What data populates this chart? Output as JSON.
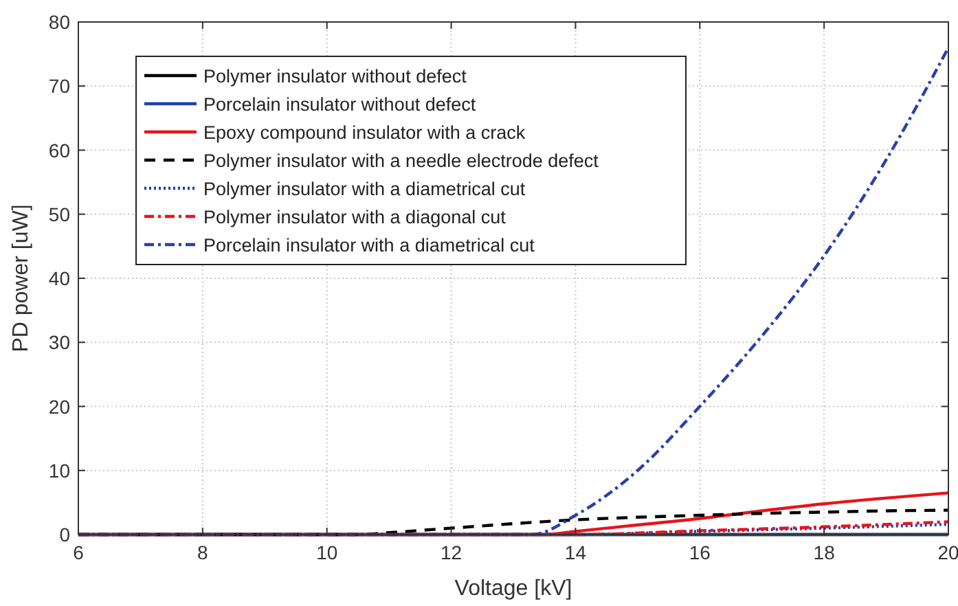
{
  "chart_data": {
    "type": "line",
    "xlabel": "Voltage [kV]",
    "ylabel": "PD power [uW]",
    "xlim": [
      6,
      20
    ],
    "xticks": [
      6,
      8,
      10,
      12,
      14,
      16,
      18,
      20
    ],
    "ylim": [
      0,
      80
    ],
    "yticks": [
      0,
      10,
      20,
      30,
      40,
      50,
      60,
      70,
      80
    ],
    "grid": true,
    "legend": "top left",
    "series": [
      {
        "name": "Polymer insulator without defect",
        "color": "#000000",
        "line_style": "solid",
        "x": [
          6,
          20
        ],
        "values": [
          0,
          0
        ]
      },
      {
        "name": "Porcelain insulator without defect",
        "color": "#1f3fb0",
        "line_style": "solid",
        "x": [
          6,
          20
        ],
        "values": [
          0,
          0
        ]
      },
      {
        "name": "Epoxy compound insulator with a crack",
        "color": "#e8141a",
        "line_style": "solid",
        "x": [
          6,
          13.5,
          14,
          15,
          16,
          17,
          18,
          19,
          20
        ],
        "values": [
          0,
          0,
          0.5,
          1.5,
          2.5,
          3.7,
          4.8,
          5.7,
          6.5
        ]
      },
      {
        "name": "Polymer insulator with a needle electrode defect",
        "color": "#000000",
        "line_style": "dashed",
        "x": [
          6,
          10.5,
          11,
          12,
          13,
          14,
          15,
          16,
          17,
          18,
          19,
          20
        ],
        "values": [
          0,
          0,
          0.3,
          1,
          1.7,
          2.3,
          2.7,
          3,
          3.3,
          3.5,
          3.7,
          3.8
        ]
      },
      {
        "name": "Polymer insulator with a diametrical cut",
        "color": "#1f3fb0",
        "line_style": "dotted",
        "x": [
          6,
          14,
          16,
          18,
          20
        ],
        "values": [
          0,
          0,
          0.5,
          1,
          1.6
        ]
      },
      {
        "name": "Polymer insulator with a diagonal cut",
        "color": "#e8141a",
        "line_style": "dashdot",
        "x": [
          6,
          14,
          16,
          18,
          20
        ],
        "values": [
          0,
          0,
          0.6,
          1.2,
          2
        ]
      },
      {
        "name": "Porcelain insulator with a diametrical cut",
        "color": "#2a3fa8",
        "line_style": "dashdot",
        "x": [
          6,
          13.3,
          14,
          15,
          16,
          17,
          18,
          19,
          20
        ],
        "values": [
          0,
          0,
          3,
          10,
          20,
          31,
          43.5,
          58.5,
          76
        ]
      }
    ]
  }
}
